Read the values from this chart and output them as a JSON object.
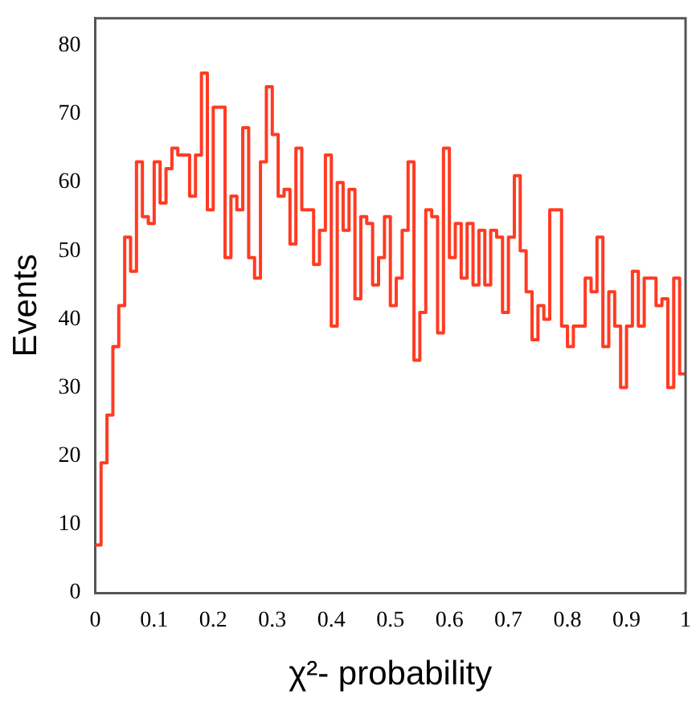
{
  "chart_data": {
    "type": "histogram",
    "xlabel": "χ²- probability",
    "ylabel": "Events",
    "color": "#ff3b22",
    "bins": [
      0,
      0.01,
      0.02,
      0.03,
      0.04,
      0.05,
      0.06,
      0.07,
      0.08,
      0.09,
      0.1,
      0.11,
      0.12,
      0.13,
      0.14,
      0.15,
      0.16,
      0.17,
      0.18,
      0.19,
      0.2,
      0.21,
      0.22,
      0.23,
      0.24,
      0.25,
      0.26,
      0.27,
      0.28,
      0.29,
      0.3,
      0.31,
      0.32,
      0.33,
      0.34,
      0.35,
      0.36,
      0.37,
      0.38,
      0.39,
      0.4,
      0.41,
      0.42,
      0.43,
      0.44,
      0.45,
      0.46,
      0.47,
      0.48,
      0.49,
      0.5,
      0.51,
      0.52,
      0.53,
      0.54,
      0.55,
      0.56,
      0.57,
      0.58,
      0.59,
      0.6,
      0.61,
      0.62,
      0.63,
      0.64,
      0.65,
      0.66,
      0.67,
      0.68,
      0.69,
      0.7,
      0.71,
      0.72,
      0.73,
      0.74,
      0.75,
      0.76,
      0.77,
      0.78,
      0.79,
      0.8,
      0.81,
      0.82,
      0.83,
      0.84,
      0.85,
      0.86,
      0.87,
      0.88,
      0.89,
      0.9,
      0.91,
      0.92,
      0.93,
      0.94,
      0.95,
      0.96,
      0.97,
      0.98,
      0.99,
      1
    ],
    "values": [
      7,
      19,
      26,
      36,
      42,
      52,
      47,
      63,
      55,
      54,
      63,
      57,
      62,
      65,
      64,
      64,
      58,
      64,
      76,
      56,
      71,
      71,
      49,
      58,
      56,
      68,
      49,
      46,
      63,
      74,
      67,
      58,
      59,
      51,
      65,
      56,
      56,
      48,
      53,
      64,
      39,
      60,
      53,
      59,
      43,
      55,
      54,
      45,
      49,
      55,
      42,
      46,
      53,
      63,
      34,
      41,
      56,
      55,
      38,
      65,
      49,
      54,
      46,
      54,
      45,
      53,
      45,
      53,
      52,
      41,
      52,
      61,
      50,
      44,
      37,
      42,
      40,
      56,
      56,
      39,
      36,
      39,
      39,
      46,
      44,
      52,
      36,
      44,
      39,
      30,
      39,
      47,
      39,
      46,
      46,
      42,
      43,
      30,
      46,
      32
    ],
    "xlim": [
      0,
      1
    ],
    "xticks": [
      0,
      0.1,
      0.2,
      0.3,
      0.4,
      0.5,
      0.6,
      0.7,
      0.8,
      0.9,
      1
    ],
    "ylim": [
      0,
      84
    ],
    "yticks": [
      0,
      10,
      20,
      30,
      40,
      50,
      60,
      70,
      80
    ]
  }
}
